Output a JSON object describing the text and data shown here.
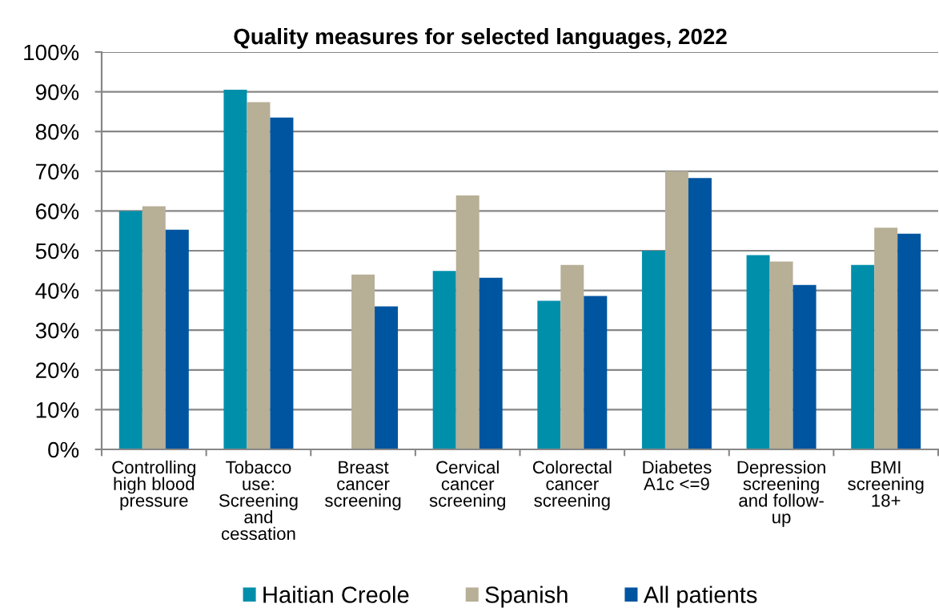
{
  "chart_data": {
    "type": "bar",
    "title": "Quality measures for selected languages, 2022",
    "categories": [
      "Controlling\nhigh blood\npressure",
      "Tobacco\nuse:\nScreening\nand\ncessation",
      "Breast\ncancer\nscreening",
      "Cervical\ncancer\nscreening",
      "Colorectal\ncancer\nscreening",
      "Diabetes\nA1c <=9",
      "Depression\nscreening\nand follow-\nup",
      "BMI\nscreening\n18+"
    ],
    "series": [
      {
        "name": "Haitian Creole",
        "color": "#008fab",
        "values": [
          60.0,
          90.5,
          null,
          44.9,
          37.4,
          50.0,
          48.9,
          46.4
        ]
      },
      {
        "name": "Spanish",
        "color": "#b7af96",
        "values": [
          61.2,
          87.4,
          44.0,
          63.9,
          46.4,
          70.0,
          47.3,
          55.8
        ]
      },
      {
        "name": "All patients",
        "color": "#0055a0",
        "values": [
          55.3,
          83.5,
          36.0,
          43.2,
          38.6,
          68.3,
          41.4,
          54.3
        ]
      }
    ],
    "ylim": [
      0,
      100
    ],
    "yticks": [
      {
        "value": 0,
        "label": "0%"
      },
      {
        "value": 10,
        "label": "10%"
      },
      {
        "value": 20,
        "label": "20%"
      },
      {
        "value": 30,
        "label": "30%"
      },
      {
        "value": 40,
        "label": "40%"
      },
      {
        "value": 50,
        "label": "50%"
      },
      {
        "value": 60,
        "label": "60%"
      },
      {
        "value": 70,
        "label": "70%"
      },
      {
        "value": 80,
        "label": "80%"
      },
      {
        "value": 90,
        "label": "90%"
      },
      {
        "value": 100,
        "label": "100%"
      }
    ],
    "grid": "y",
    "legend": "bottom"
  }
}
